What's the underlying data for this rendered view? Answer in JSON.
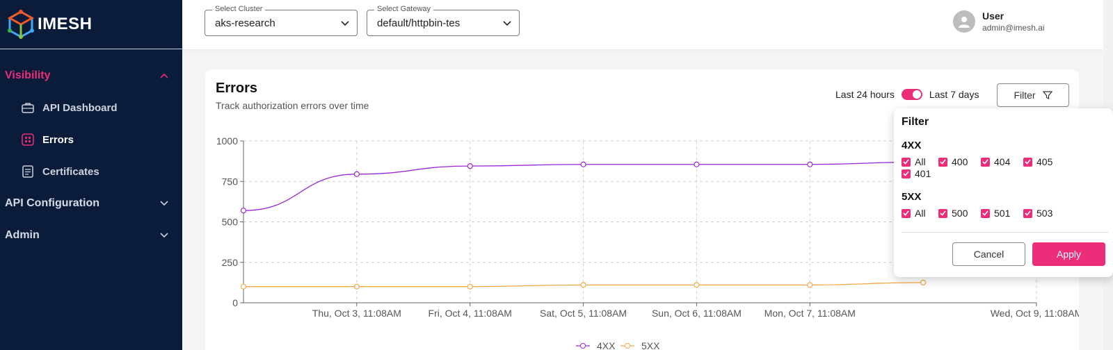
{
  "brand": {
    "name": "IMESH",
    "logo_icon": "imesh-cube-logo"
  },
  "sidebar": {
    "groups": [
      {
        "label": "Visibility",
        "icon": "chevron-up-icon",
        "active": true
      },
      {
        "label": "API Configuration",
        "icon": "chevron-down-icon"
      },
      {
        "label": "Admin",
        "icon": "chevron-down-icon"
      }
    ],
    "items": [
      {
        "label": "API Dashboard",
        "icon": "briefcase-icon"
      },
      {
        "label": "Errors",
        "icon": "grid-dots-icon",
        "active": true
      },
      {
        "label": "Certificates",
        "icon": "document-icon"
      }
    ]
  },
  "topbar": {
    "cluster": {
      "label": "Select Cluster",
      "value": "aks-research"
    },
    "gateway": {
      "label": "Select Gateway",
      "value": "default/httpbin-tes"
    },
    "user": {
      "name": "User",
      "email": "admin@imesh.ai"
    }
  },
  "card": {
    "title": "Errors",
    "subtitle": "Track authorization errors over time",
    "range_left": "Last 24 hours",
    "range_right": "Last 7 days",
    "filter_label": "Filter"
  },
  "filter_popup": {
    "title": "Filter",
    "group_4xx": {
      "title": "4XX",
      "options": [
        "All",
        "400",
        "404",
        "405",
        "401"
      ]
    },
    "group_5xx": {
      "title": "5XX",
      "options": [
        "All",
        "500",
        "501",
        "503"
      ]
    },
    "cancel_label": "Cancel",
    "apply_label": "Apply"
  },
  "colors": {
    "accent": "#ec2d7a",
    "sidebar_bg": "#0b1c3a",
    "series_4xx": "#9c27d8",
    "series_5xx": "#f5a742"
  },
  "chart_data": {
    "type": "line",
    "title": "",
    "ylim": [
      0,
      1000
    ],
    "yticks": [
      0,
      250,
      500,
      750,
      1000
    ],
    "x_tick_labels": [
      "Thu, Oct 3, 11:08AM",
      "Fri, Oct 4, 11:08AM",
      "Sat, Oct 5, 11:08AM",
      "Sun, Oct 6, 11:08AM",
      "Mon, Oct 7, 11:08AM",
      "Wed, Oct 9, 11:08AM"
    ],
    "x_tick_positions": [
      1,
      2,
      3,
      4,
      5,
      7
    ],
    "xlim": [
      0,
      7
    ],
    "grid": true,
    "series": [
      {
        "name": "4XX",
        "color": "#9c27d8",
        "x": [
          0,
          1,
          2,
          3,
          4,
          5,
          6
        ],
        "y": [
          570,
          795,
          845,
          855,
          855,
          855,
          870
        ]
      },
      {
        "name": "5XX",
        "color": "#f5a742",
        "x": [
          0,
          1,
          2,
          3,
          4,
          5,
          6
        ],
        "y": [
          100,
          100,
          100,
          110,
          110,
          110,
          125
        ]
      }
    ]
  }
}
